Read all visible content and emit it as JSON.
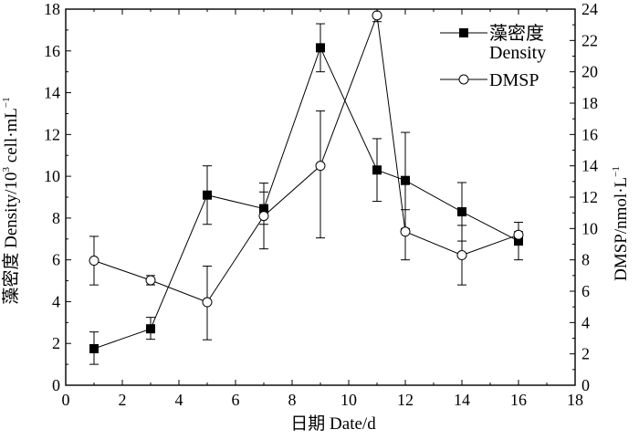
{
  "chart_data": {
    "type": "line",
    "xlabel": "日期 Date/d",
    "ylabel_left_text": "藻密度 Density/10",
    "ylabel_left_sup": "3",
    "ylabel_left_unit": " cell·mL",
    "ylabel_left_unit_sup": "−1",
    "ylabel_right_text": "DMSP/nmol·L",
    "ylabel_right_sup": "−1",
    "xlim": [
      0,
      18
    ],
    "ylim_left": [
      0,
      18
    ],
    "ylim_right": [
      0,
      24
    ],
    "x_ticks": [
      0,
      2,
      4,
      6,
      8,
      10,
      12,
      14,
      16,
      18
    ],
    "y_left_ticks": [
      0,
      2,
      4,
      6,
      8,
      10,
      12,
      14,
      16,
      18
    ],
    "y_right_ticks": [
      0,
      2,
      4,
      6,
      8,
      10,
      12,
      14,
      16,
      18,
      20,
      22,
      24
    ],
    "legend_position": "top-right",
    "series": [
      {
        "name": "藻密度",
        "name_line2": "Density",
        "marker": "filled-square",
        "axis": "left",
        "x": [
          1,
          3,
          5,
          7,
          9,
          11,
          12,
          14,
          16
        ],
        "y": [
          1.75,
          2.7,
          9.1,
          8.45,
          16.15,
          10.3,
          9.8,
          8.3,
          6.9
        ],
        "err_low": [
          1.0,
          2.2,
          7.7,
          7.7,
          15.0,
          8.8,
          7.5,
          6.9,
          6.0
        ],
        "err_high": [
          2.55,
          3.25,
          10.5,
          9.25,
          17.3,
          11.8,
          12.1,
          9.7,
          7.8
        ]
      },
      {
        "name": "DMSP",
        "marker": "open-circle",
        "axis": "right",
        "x": [
          1,
          3,
          5,
          7,
          9,
          11,
          12,
          14,
          16
        ],
        "y": [
          7.95,
          6.7,
          5.3,
          10.8,
          14.0,
          23.6,
          9.8,
          8.3,
          9.6
        ],
        "err_low": [
          6.4,
          6.4,
          2.9,
          8.7,
          9.4,
          23.2,
          8.0,
          6.4,
          9.4
        ],
        "err_high": [
          9.5,
          7.0,
          7.6,
          12.9,
          17.5,
          24.0,
          11.2,
          10.2,
          9.8
        ]
      }
    ]
  }
}
